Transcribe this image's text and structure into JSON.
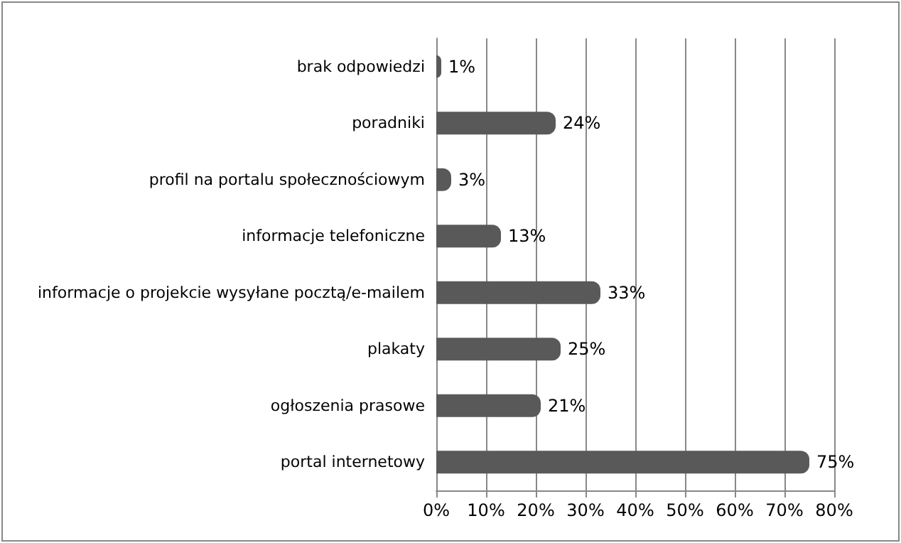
{
  "chart_data": {
    "type": "bar",
    "orientation": "horizontal",
    "categories": [
      "brak odpowiedzi",
      "poradniki",
      "profil na portalu społecznościowym",
      "informacje telefoniczne",
      "informacje o projekcie wysyłane pocztą/e-mailem",
      "plakaty",
      "ogłoszenia prasowe",
      "portal internetowy"
    ],
    "values": [
      1,
      24,
      3,
      13,
      33,
      25,
      21,
      75
    ],
    "value_labels": [
      "1%",
      "24%",
      "3%",
      "13%",
      "33%",
      "25%",
      "21%",
      "75%"
    ],
    "color": "#595959",
    "xlim": [
      0,
      80
    ],
    "xticks": [
      {
        "value": 0,
        "label": "0%"
      },
      {
        "value": 10,
        "label": "10%"
      },
      {
        "value": 20,
        "label": "20%"
      },
      {
        "value": 30,
        "label": "30%"
      },
      {
        "value": 40,
        "label": "40%"
      },
      {
        "value": 50,
        "label": "50%"
      },
      {
        "value": 60,
        "label": "60%"
      },
      {
        "value": 70,
        "label": "70%"
      },
      {
        "value": 80,
        "label": "80%"
      }
    ],
    "grid": "x"
  }
}
